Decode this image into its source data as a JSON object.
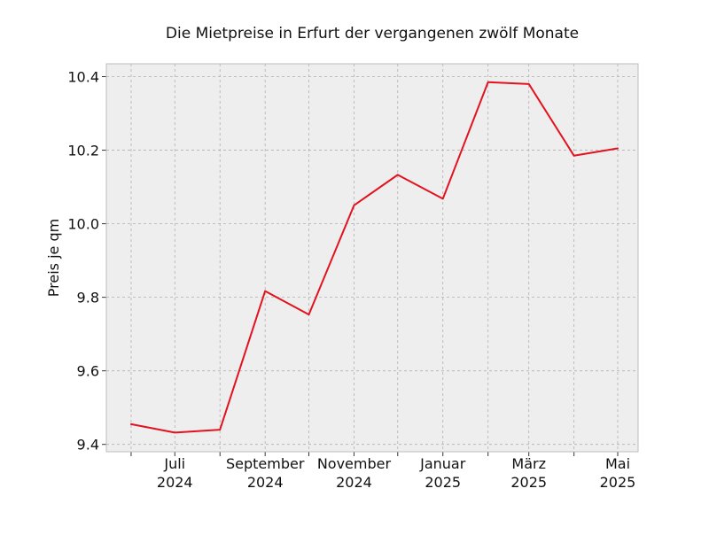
{
  "chart_data": {
    "type": "line",
    "title": "Die Mietpreise in Erfurt der vergangenen zwölf Monate",
    "xlabel": "",
    "ylabel": "Preis je qm",
    "x": [
      "2024-06",
      "2024-07",
      "2024-08",
      "2024-09",
      "2024-10",
      "2024-11",
      "2024-12",
      "2025-01",
      "2025-02",
      "2025-03",
      "2025-04",
      "2025-05"
    ],
    "xlim": [
      "2024-05-15",
      "2025-05-15"
    ],
    "x_ticks": [
      {
        "x": "2024-06",
        "label": [
          "",
          ""
        ]
      },
      {
        "x": "2024-07",
        "label": [
          "Juli",
          "2024"
        ]
      },
      {
        "x": "2024-08",
        "label": [
          "",
          ""
        ]
      },
      {
        "x": "2024-09",
        "label": [
          "September",
          "2024"
        ]
      },
      {
        "x": "2024-10",
        "label": [
          "",
          ""
        ]
      },
      {
        "x": "2024-11",
        "label": [
          "November",
          "2024"
        ]
      },
      {
        "x": "2024-12",
        "label": [
          "",
          ""
        ]
      },
      {
        "x": "2025-01",
        "label": [
          "Januar",
          "2025"
        ]
      },
      {
        "x": "2025-02",
        "label": [
          "",
          ""
        ]
      },
      {
        "x": "2025-03",
        "label": [
          "März",
          "2025"
        ]
      },
      {
        "x": "2025-04",
        "label": [
          "",
          ""
        ]
      },
      {
        "x": "2025-05",
        "label": [
          "Mai",
          "2025"
        ]
      }
    ],
    "series": [
      {
        "color": "#e3121f",
        "values": [
          9.455,
          9.432,
          9.44,
          9.817,
          9.753,
          10.05,
          10.133,
          10.068,
          10.385,
          10.38,
          10.185,
          10.205
        ]
      }
    ],
    "ylim": [
      9.38,
      10.435
    ],
    "y_ticks": [
      9.4,
      9.6,
      9.8,
      10.0,
      10.2,
      10.4
    ],
    "y_tick_labels": [
      "9.4",
      "9.6",
      "9.8",
      "10.0",
      "10.2",
      "10.4"
    ],
    "grid": true,
    "background_color": "#eeeeee",
    "grid_color": "#b0b0b0"
  }
}
